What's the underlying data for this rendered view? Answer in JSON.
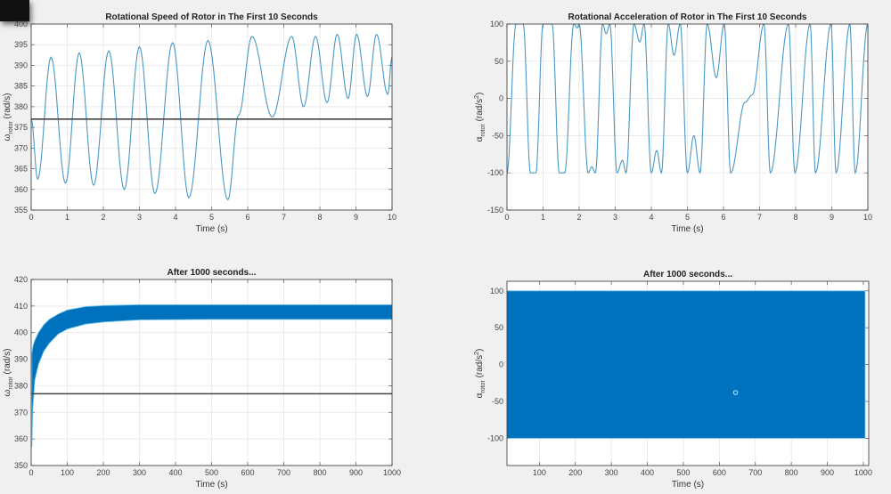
{
  "chart_data": [
    {
      "type": "line",
      "title": "Rotational Speed of Rotor in The First 10 Seconds",
      "xlabel": "Time (s)",
      "ylabel": {
        "symbol": "ω",
        "sub": "rotor",
        "unit": " (rad/s)",
        "sup": ""
      },
      "xlim": [
        0,
        10
      ],
      "ylim": [
        355,
        400
      ],
      "xticks": [
        0,
        1,
        2,
        3,
        4,
        5,
        6,
        7,
        8,
        9,
        10
      ],
      "yticks": [
        355,
        360,
        365,
        370,
        375,
        380,
        385,
        390,
        395,
        400
      ],
      "grid": true,
      "series": [
        {
          "name": "omega_rotor",
          "color": "#4a98c4",
          "extrema_t": [
            0,
            0.18,
            0.55,
            0.95,
            1.33,
            1.73,
            2.15,
            2.58,
            3.0,
            3.43,
            3.92,
            4.37,
            4.9,
            5.45,
            5.75,
            6.12,
            6.68,
            7.22,
            7.55,
            7.88,
            8.2,
            8.48,
            8.78,
            9.02,
            9.32,
            9.57,
            9.88,
            10
          ],
          "extrema_v": [
            377,
            362.5,
            392,
            361.5,
            393,
            361,
            393.5,
            360,
            394.5,
            359,
            395.5,
            358,
            396,
            357.5,
            378,
            397,
            377.5,
            397,
            380,
            397,
            381,
            397.5,
            382,
            397.5,
            382.5,
            397.5,
            383,
            392
          ]
        },
        {
          "name": "reference",
          "color": "#444444",
          "constant": 377
        }
      ]
    },
    {
      "type": "line",
      "title": "Rotational Acceleration of Rotor in The First 10 Seconds",
      "xlabel": "Time (s)",
      "ylabel": {
        "symbol": "α",
        "sub": "rotor",
        "unit": " (rad/s",
        "sup": "2",
        "close": ")"
      },
      "xlim": [
        0,
        10
      ],
      "ylim": [
        -150,
        100
      ],
      "xticks": [
        0,
        1,
        2,
        3,
        4,
        5,
        6,
        7,
        8,
        9,
        10
      ],
      "yticks": [
        -150,
        -100,
        -50,
        0,
        50,
        100
      ],
      "grid": true,
      "series": [
        {
          "name": "alpha_rotor",
          "color": "#4a98c4",
          "extrema_t": [
            0,
            0.25,
            0.45,
            0.65,
            0.8,
            1.0,
            1.25,
            1.45,
            1.6,
            1.85,
            1.95,
            2.0,
            2.25,
            2.35,
            2.45,
            2.65,
            2.75,
            2.85,
            3.05,
            3.2,
            3.3,
            3.52,
            3.68,
            3.8,
            4.0,
            4.15,
            4.28,
            4.47,
            4.63,
            4.8,
            5.0,
            5.18,
            5.35,
            5.55,
            5.8,
            6.02,
            6.2,
            6.6,
            6.8,
            7.12,
            7.3,
            7.8,
            7.98,
            8.4,
            8.55,
            8.98,
            9.12,
            9.5,
            9.65,
            10
          ],
          "extrema_v": [
            -100,
            100,
            100,
            -100,
            -100,
            100,
            100,
            -100,
            -100,
            100,
            95,
            100,
            -100,
            -92,
            -100,
            100,
            87,
            100,
            -100,
            -83,
            -100,
            100,
            76,
            100,
            -100,
            -70,
            -100,
            100,
            58,
            100,
            -100,
            -50,
            -100,
            100,
            28,
            100,
            -100,
            -5,
            5,
            100,
            -100,
            100,
            -100,
            100,
            -100,
            100,
            -100,
            100,
            -100,
            100
          ]
        }
      ]
    },
    {
      "type": "area",
      "title": "After 1000 seconds...",
      "xlabel": "Time (s)",
      "ylabel": {
        "symbol": "ω",
        "sub": "rotor",
        "unit": " (rad/s)",
        "sup": ""
      },
      "xlim": [
        0,
        1000
      ],
      "ylim": [
        350,
        420
      ],
      "xticks": [
        0,
        100,
        200,
        300,
        400,
        500,
        600,
        700,
        800,
        900,
        1000
      ],
      "yticks": [
        350,
        360,
        370,
        380,
        390,
        400,
        410,
        420
      ],
      "grid": true,
      "series": [
        {
          "name": "omega_rotor_envelope",
          "color": "#0072bd",
          "t": [
            2,
            5,
            10,
            20,
            35,
            50,
            75,
            100,
            150,
            200,
            300,
            500,
            1000
          ],
          "upper": [
            392,
            395,
            397,
            400,
            403,
            405,
            407,
            408.5,
            409.8,
            410.2,
            410.5,
            410.5,
            410.5
          ],
          "lower": [
            357,
            372,
            382,
            388,
            393,
            396,
            399.5,
            401.3,
            403.2,
            404,
            404.8,
            405,
            405
          ]
        },
        {
          "name": "reference",
          "color": "#444444",
          "constant": 377
        }
      ]
    },
    {
      "type": "area",
      "title": "After 1000 seconds...",
      "xlabel": "Time (s)",
      "ylabel": {
        "symbol": "α",
        "sub": "rotor",
        "unit": " (rad/s",
        "sup": "2",
        "close": ")"
      },
      "xlim": [
        10,
        1015
      ],
      "ylim": [
        -137,
        113
      ],
      "xticks": [
        100,
        200,
        300,
        400,
        500,
        600,
        700,
        800,
        900,
        1000
      ],
      "yticks": [
        -100,
        -50,
        0,
        50,
        100
      ],
      "grid": true,
      "series": [
        {
          "name": "alpha_rotor_envelope",
          "color": "#0072bd",
          "t": [
            10,
            1005
          ],
          "upper": [
            100,
            100
          ],
          "lower": [
            -100,
            -100
          ]
        },
        {
          "name": "marker",
          "color": "#a8dcf5",
          "point": [
            645,
            -38
          ]
        }
      ]
    }
  ]
}
